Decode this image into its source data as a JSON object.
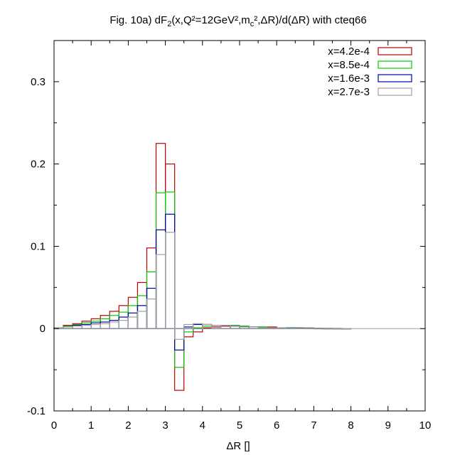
{
  "chart_data": {
    "type": "step-histogram",
    "title_parts": [
      {
        "text": "Fig. 10a) dF",
        "shift": "none"
      },
      {
        "text": "2",
        "shift": "sub"
      },
      {
        "text": "(x,Q²=12GeV²,m",
        "shift": "none"
      },
      {
        "text": "c",
        "shift": "sub"
      },
      {
        "text": "²,ΔR)/d(ΔR) with cteq66",
        "shift": "none"
      }
    ],
    "xlabel": "ΔR []",
    "ylabel": "",
    "xlim": [
      0,
      10
    ],
    "ylim": [
      -0.1,
      0.35
    ],
    "xticks": [
      0,
      1,
      2,
      3,
      4,
      5,
      6,
      7,
      8,
      9,
      10
    ],
    "yticks": [
      -0.1,
      0,
      0.1,
      0.2,
      0.3
    ],
    "ytick_labels": [
      "-0.1",
      "0",
      "0.1",
      "0.2",
      "0.3"
    ],
    "grid": false,
    "zero_line": true,
    "legend_position": "top-right",
    "bin_edges": [
      0,
      0.25,
      0.5,
      0.75,
      1.0,
      1.25,
      1.5,
      1.75,
      2.0,
      2.25,
      2.5,
      2.75,
      3.0,
      3.25,
      3.5,
      3.75,
      4.0,
      4.25,
      4.5,
      4.75,
      5.0,
      5.25,
      5.5,
      5.75,
      6.0,
      6.25,
      6.5,
      6.75,
      7.0,
      7.25,
      7.5,
      7.75,
      8.0
    ],
    "series": [
      {
        "name": "x=4.2e-4",
        "color": "#c00000",
        "values": [
          0.001,
          0.004,
          0.006,
          0.009,
          0.012,
          0.016,
          0.021,
          0.028,
          0.038,
          0.056,
          0.098,
          0.225,
          0.2,
          -0.075,
          -0.01,
          -0.004,
          0.001,
          0.002,
          0.003,
          0.003,
          0.003,
          0.002,
          0.002,
          0.002,
          0.001,
          0.001,
          0.001,
          0.0008,
          0.0005,
          0.0004,
          0.0003,
          0.0001
        ]
      },
      {
        "name": "x=8.5e-4",
        "color": "#00cc00",
        "values": [
          0.001,
          0.003,
          0.005,
          0.007,
          0.009,
          0.012,
          0.016,
          0.02,
          0.028,
          0.04,
          0.069,
          0.165,
          0.166,
          -0.047,
          -0.004,
          0.001,
          0.003,
          0.004,
          0.004,
          0.004,
          0.003,
          0.002,
          0.002,
          0.001,
          0.001,
          0.001,
          0.0008,
          0.0005,
          0.0003,
          0.0002,
          0.0001,
          0.0001
        ]
      },
      {
        "name": "x=1.6e-3",
        "color": "#0000b0",
        "values": [
          0.001,
          0.002,
          0.004,
          0.005,
          0.007,
          0.008,
          0.01,
          0.014,
          0.019,
          0.028,
          0.049,
          0.12,
          0.139,
          -0.026,
          0.002,
          0.005,
          0.005,
          0.004,
          0.004,
          0.003,
          0.002,
          0.002,
          0.001,
          0.001,
          0.001,
          0.0008,
          0.0005,
          0.0003,
          0.0002,
          0.0001,
          0.0001,
          0.0001
        ]
      },
      {
        "name": "x=2.7e-3",
        "color": "#a0a0a0",
        "values": [
          0.001,
          0.002,
          0.003,
          0.004,
          0.005,
          0.006,
          0.008,
          0.01,
          0.014,
          0.021,
          0.036,
          0.09,
          0.117,
          -0.013,
          0.005,
          0.006,
          0.005,
          0.004,
          0.004,
          0.003,
          0.002,
          0.002,
          0.001,
          0.001,
          0.001,
          0.0005,
          0.0003,
          0.0002,
          0.0001,
          0.0001,
          0.0001,
          0.0001
        ]
      }
    ]
  }
}
